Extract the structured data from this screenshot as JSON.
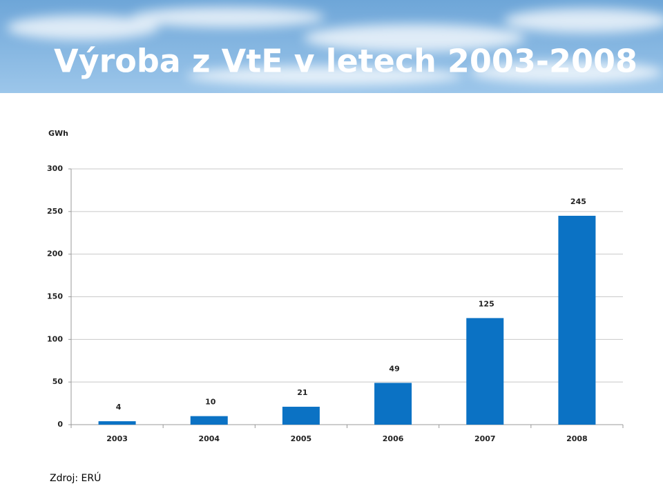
{
  "chart_data": {
    "type": "bar",
    "title": "Výroba z VtE v letech 2003-2008",
    "y_label": "GWh",
    "categories": [
      "2003",
      "2004",
      "2005",
      "2006",
      "2007",
      "2008"
    ],
    "values": [
      4,
      10,
      21,
      49,
      125,
      245
    ],
    "color": "#0b72c4",
    "ylim": [
      0,
      300
    ],
    "yticks": [
      0,
      50,
      100,
      150,
      200,
      250,
      300
    ],
    "grid": true,
    "source": "Zdroj: ERÚ"
  }
}
